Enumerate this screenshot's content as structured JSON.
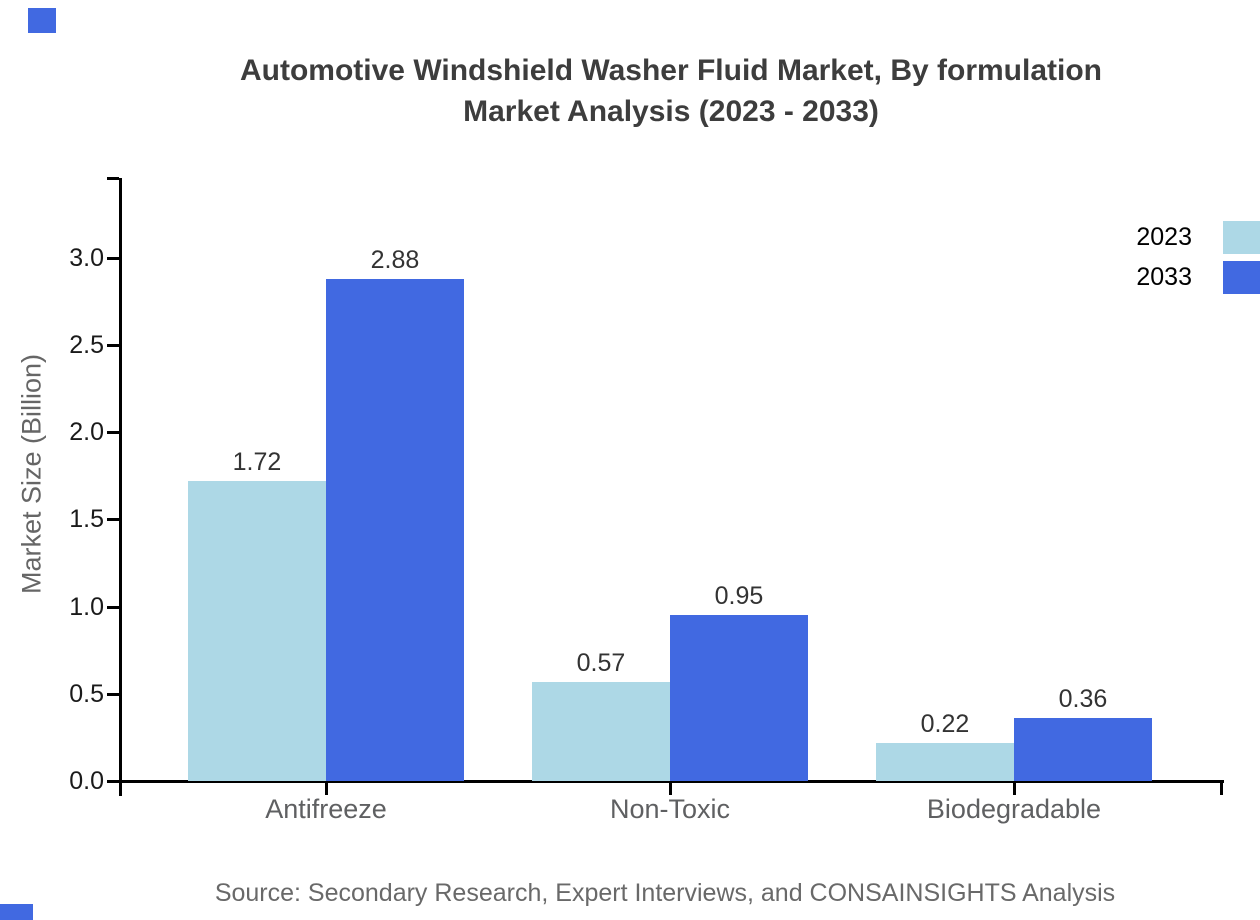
{
  "title": {
    "line1": "Automotive Windshield Washer Fluid Market, By formulation",
    "line2": "Market Analysis (2023 - 2033)"
  },
  "y_axis": {
    "label": "Market Size (Billion)"
  },
  "legend": {
    "items": [
      {
        "label": "2023",
        "color": "#ADD8E6"
      },
      {
        "label": "2033",
        "color": "#4169E1"
      }
    ]
  },
  "source": "Source: Secondary Research, Expert Interviews, and CONSAINSIGHTS Analysis",
  "accents": {
    "corner_color": "#4169E1"
  },
  "chart_data": {
    "type": "bar",
    "categories": [
      "Antifreeze",
      "Non-Toxic",
      "Biodegradable"
    ],
    "series": [
      {
        "name": "2023",
        "color": "#ADD8E6",
        "values": [
          1.72,
          0.57,
          0.22
        ],
        "labels": [
          "1.72",
          "0.57",
          "0.22"
        ]
      },
      {
        "name": "2033",
        "color": "#4169E1",
        "values": [
          2.88,
          0.95,
          0.36
        ],
        "labels": [
          "2.88",
          "0.95",
          "0.36"
        ]
      }
    ],
    "title": "Automotive Windshield Washer Fluid Market, By formulation Market Analysis (2023 - 2033)",
    "xlabel": "",
    "ylabel": "Market Size (Billion)",
    "ylim": [
      0,
      3.45
    ],
    "yticks": [
      0.0,
      0.5,
      1.0,
      1.5,
      2.0,
      2.5,
      3.0
    ],
    "ytick_labels": [
      "0.0",
      "0.5",
      "1.0",
      "1.5",
      "2.0",
      "2.5",
      "3.0"
    ],
    "grid": false,
    "value_labels_shown": true,
    "legend_position": "upper right outside, swatches cut at right edge"
  }
}
